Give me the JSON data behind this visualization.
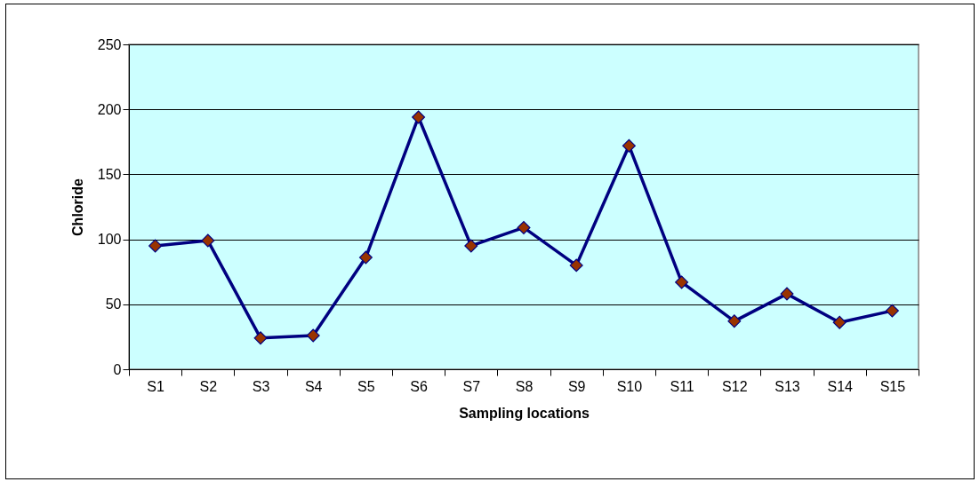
{
  "chart_data": {
    "type": "line",
    "xlabel": "Sampling locations",
    "ylabel": "Chloride",
    "categories": [
      "S1",
      "S2",
      "S3",
      "S4",
      "S5",
      "S6",
      "S7",
      "S8",
      "S9",
      "S10",
      "S11",
      "S12",
      "S13",
      "S14",
      "S15"
    ],
    "series": [
      {
        "color": "#000080",
        "values": [
          95,
          99,
          24,
          26,
          86,
          194,
          95,
          109,
          80,
          172,
          67,
          37,
          58,
          36,
          45
        ]
      }
    ],
    "ylim": [
      0,
      250
    ],
    "yticks": [
      0,
      50,
      100,
      150,
      200,
      250
    ],
    "grid": "y",
    "marker": "diamond",
    "line_style": "solid"
  }
}
